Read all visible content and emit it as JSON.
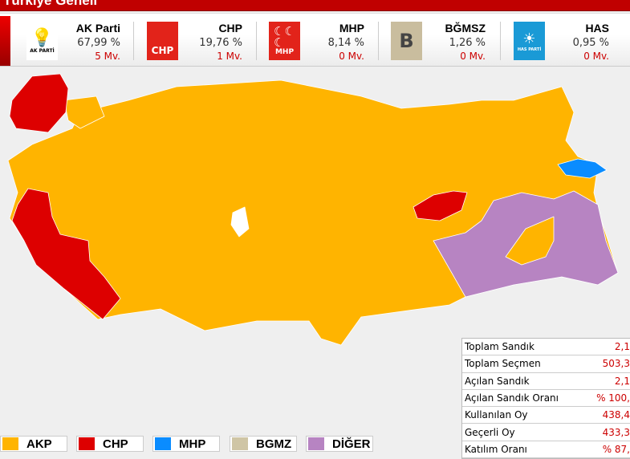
{
  "header": {
    "title": "Türkiye Geneli"
  },
  "parties": [
    {
      "name": "AK Parti",
      "pct": "67,99 %",
      "seats": "5 Mv.",
      "logo_text": "AK PARTİ",
      "color": "#ffffff"
    },
    {
      "name": "CHP",
      "pct": "19,76 %",
      "seats": "1 Mv.",
      "logo_text": "CHP",
      "color": "#e2231a"
    },
    {
      "name": "MHP",
      "pct": "8,14 %",
      "seats": "0 Mv.",
      "logo_text": "MHP",
      "color": "#e2231a"
    },
    {
      "name": "BĞMSZ",
      "pct": "1,26 %",
      "seats": "0 Mv.",
      "logo_text": "B",
      "color": "#c9bd9e"
    },
    {
      "name": "HAS",
      "pct": "0,95 %",
      "seats": "0 Mv.",
      "logo_text": "HAS PARTİ",
      "color": "#1a9ad6"
    }
  ],
  "map_colors": {
    "AKP": "#ffb400",
    "CHP": "#dd0000",
    "MHP": "#0a8cff",
    "BGMZ": "#cfc5a5",
    "DIGER": "#b784c2"
  },
  "stats": [
    {
      "label": "Toplam Sandık",
      "value": "2,1"
    },
    {
      "label": "Toplam Seçmen",
      "value": "503,3"
    },
    {
      "label": "Açılan Sandık",
      "value": "2,1"
    },
    {
      "label": "Açılan Sandık Oranı",
      "value": "% 100,"
    },
    {
      "label": "Kullanılan Oy",
      "value": "438,4"
    },
    {
      "label": "Geçerli Oy",
      "value": "433,3"
    },
    {
      "label": "Katılım Oranı",
      "value": "% 87,"
    }
  ],
  "legend": [
    {
      "label": "AKP",
      "color": "#ffb400"
    },
    {
      "label": "CHP",
      "color": "#dd0000"
    },
    {
      "label": "MHP",
      "color": "#0a8cff"
    },
    {
      "label": "BGMZ",
      "color": "#cfc5a5"
    },
    {
      "label": "DİĞER",
      "color": "#b784c2"
    }
  ]
}
